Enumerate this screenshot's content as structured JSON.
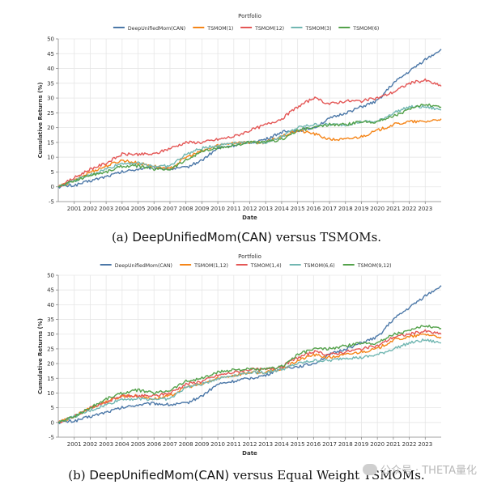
{
  "captions": {
    "a": {
      "prefix": "(a) ",
      "subject": "DeepUnifiedMom(CAN)",
      "rest": " versus TSMOMs."
    },
    "b": {
      "prefix": "(b) ",
      "subject": "DeepUnifiedMom(CAN)",
      "rest": " versus Equal Weight TSMOMs."
    }
  },
  "watermark": {
    "text": "公众号 · THETA量化",
    "icon": "wechat-icon"
  },
  "chart_data": [
    {
      "type": "line",
      "id": "a",
      "title": "",
      "legend_title": "Portfolio",
      "legend_position": "top-center",
      "xlabel": "Date",
      "ylabel": "Cumulative Returns (%)",
      "xlim": [
        2000.0,
        2024.0
      ],
      "ylim": [
        -5,
        50
      ],
      "yticks": [
        -5,
        0,
        5,
        10,
        15,
        20,
        25,
        30,
        35,
        40,
        45,
        50
      ],
      "xticks": [
        2001,
        2002,
        2003,
        2004,
        2005,
        2006,
        2007,
        2008,
        2009,
        2010,
        2011,
        2012,
        2013,
        2014,
        2015,
        2016,
        2017,
        2018,
        2019,
        2020,
        2021,
        2022,
        2023
      ],
      "grid": true,
      "series": [
        {
          "name": "DeepUnifiedMom(CAN)",
          "color": "#4c78a8",
          "x": [
            2000.0,
            2001.0,
            2002.0,
            2003.0,
            2004.0,
            2005.0,
            2006.0,
            2007.0,
            2008.0,
            2009.0,
            2010.0,
            2011.0,
            2012.0,
            2013.0,
            2014.0,
            2015.0,
            2016.0,
            2017.0,
            2018.0,
            2019.0,
            2020.0,
            2021.0,
            2022.0,
            2023.0,
            2024.0
          ],
          "y": [
            0,
            0.5,
            2,
            3.5,
            5,
            6,
            6.5,
            6,
            6.5,
            9,
            13,
            14,
            15,
            16,
            18.5,
            19,
            20,
            23,
            25,
            27,
            29,
            35,
            39,
            43,
            46.5
          ]
        },
        {
          "name": "TSMOM(1)",
          "color": "#f58518",
          "x": [
            2000.0,
            2001.0,
            2002.0,
            2003.0,
            2004.0,
            2005.0,
            2006.0,
            2007.0,
            2008.0,
            2009.0,
            2010.0,
            2011.0,
            2012.0,
            2013.0,
            2014.0,
            2015.0,
            2016.0,
            2017.0,
            2018.0,
            2019.0,
            2020.0,
            2021.0,
            2022.0,
            2023.0,
            2024.0
          ],
          "y": [
            0,
            2,
            5,
            7,
            9,
            8,
            7,
            6,
            10,
            12,
            14,
            15,
            15,
            15,
            17,
            19,
            18,
            16,
            16,
            17,
            19,
            21,
            22,
            22,
            23
          ]
        },
        {
          "name": "TSMOM(12)",
          "color": "#e45756",
          "x": [
            2000.0,
            2001.0,
            2002.0,
            2003.0,
            2004.0,
            2005.0,
            2006.0,
            2007.0,
            2008.0,
            2009.0,
            2010.0,
            2011.0,
            2012.0,
            2013.0,
            2014.0,
            2015.0,
            2016.0,
            2017.0,
            2018.0,
            2019.0,
            2020.0,
            2021.0,
            2022.0,
            2023.0,
            2024.0
          ],
          "y": [
            0,
            3,
            6,
            8,
            11,
            11,
            11,
            13,
            15,
            15,
            16,
            17,
            19,
            21,
            23,
            27,
            30,
            28,
            29,
            29,
            30,
            32,
            35,
            36,
            34
          ]
        },
        {
          "name": "TSMOM(3)",
          "color": "#72b7b2",
          "x": [
            2000.0,
            2001.0,
            2002.0,
            2003.0,
            2004.0,
            2005.0,
            2006.0,
            2007.0,
            2008.0,
            2009.0,
            2010.0,
            2011.0,
            2012.0,
            2013.0,
            2014.0,
            2015.0,
            2016.0,
            2017.0,
            2018.0,
            2019.0,
            2020.0,
            2021.0,
            2022.0,
            2023.0,
            2024.0
          ],
          "y": [
            0,
            2,
            4,
            6,
            8,
            8,
            7,
            7,
            11,
            13,
            14,
            15,
            15,
            15,
            17,
            20,
            21,
            21,
            21,
            22,
            22,
            25,
            27,
            27,
            26
          ]
        },
        {
          "name": "TSMOM(6)",
          "color": "#54a24b",
          "x": [
            2000.0,
            2001.0,
            2002.0,
            2003.0,
            2004.0,
            2005.0,
            2006.0,
            2007.0,
            2008.0,
            2009.0,
            2010.0,
            2011.0,
            2012.0,
            2013.0,
            2014.0,
            2015.0,
            2016.0,
            2017.0,
            2018.0,
            2019.0,
            2020.0,
            2021.0,
            2022.0,
            2023.0,
            2024.0
          ],
          "y": [
            0,
            2,
            4,
            5,
            7,
            7,
            6,
            6,
            9,
            12,
            13,
            14,
            15,
            15,
            16,
            19,
            20,
            21,
            21,
            22,
            22,
            24,
            26,
            28,
            27
          ]
        }
      ]
    },
    {
      "type": "line",
      "id": "b",
      "title": "",
      "legend_title": "Portfolio",
      "legend_position": "top-center",
      "xlabel": "Date",
      "ylabel": "Cumulative Returns (%)",
      "xlim": [
        2000.0,
        2024.0
      ],
      "ylim": [
        -5,
        50
      ],
      "yticks": [
        -5,
        0,
        5,
        10,
        15,
        20,
        25,
        30,
        35,
        40,
        45,
        50
      ],
      "xticks": [
        2001,
        2002,
        2003,
        2004,
        2005,
        2006,
        2007,
        2008,
        2009,
        2010,
        2011,
        2012,
        2013,
        2014,
        2015,
        2016,
        2017,
        2018,
        2019,
        2020,
        2021,
        2022,
        2023
      ],
      "grid": true,
      "series": [
        {
          "name": "DeepUnifiedMom(CAN)",
          "color": "#4c78a8",
          "x": [
            2000.0,
            2001.0,
            2002.0,
            2003.0,
            2004.0,
            2005.0,
            2006.0,
            2007.0,
            2008.0,
            2009.0,
            2010.0,
            2011.0,
            2012.0,
            2013.0,
            2014.0,
            2015.0,
            2016.0,
            2017.0,
            2018.0,
            2019.0,
            2020.0,
            2021.0,
            2022.0,
            2023.0,
            2024.0
          ],
          "y": [
            0,
            0.5,
            2,
            3.5,
            5,
            6,
            6.5,
            6,
            6.5,
            9,
            13,
            14,
            15,
            16,
            18.5,
            19,
            20,
            23,
            25,
            27,
            29,
            35,
            39,
            43,
            46.5
          ]
        },
        {
          "name": "TSMOM(1,12)",
          "color": "#f58518",
          "x": [
            2000.0,
            2001.0,
            2002.0,
            2003.0,
            2004.0,
            2005.0,
            2006.0,
            2007.0,
            2008.0,
            2009.0,
            2010.0,
            2011.0,
            2012.0,
            2013.0,
            2014.0,
            2015.0,
            2016.0,
            2017.0,
            2018.0,
            2019.0,
            2020.0,
            2021.0,
            2022.0,
            2023.0,
            2024.0
          ],
          "y": [
            0,
            2,
            5,
            7,
            9,
            9,
            8,
            9,
            12,
            13,
            15,
            16,
            17,
            17,
            18,
            21,
            23,
            22,
            23,
            24,
            25,
            28,
            29,
            30,
            29
          ]
        },
        {
          "name": "TSMOM(1,4)",
          "color": "#e45756",
          "x": [
            2000.0,
            2001.0,
            2002.0,
            2003.0,
            2004.0,
            2005.0,
            2006.0,
            2007.0,
            2008.0,
            2009.0,
            2010.0,
            2011.0,
            2012.0,
            2013.0,
            2014.0,
            2015.0,
            2016.0,
            2017.0,
            2018.0,
            2019.0,
            2020.0,
            2021.0,
            2022.0,
            2023.0,
            2024.0
          ],
          "y": [
            0,
            2,
            5,
            7,
            9,
            9,
            9,
            10,
            13,
            14,
            16,
            17,
            18,
            18,
            19,
            22,
            24,
            23,
            24,
            25,
            26,
            29,
            30,
            31,
            30
          ]
        },
        {
          "name": "TSMOM(6,6)",
          "color": "#72b7b2",
          "x": [
            2000.0,
            2001.0,
            2002.0,
            2003.0,
            2004.0,
            2005.0,
            2006.0,
            2007.0,
            2008.0,
            2009.0,
            2010.0,
            2011.0,
            2012.0,
            2013.0,
            2014.0,
            2015.0,
            2016.0,
            2017.0,
            2018.0,
            2019.0,
            2020.0,
            2021.0,
            2022.0,
            2023.0,
            2024.0
          ],
          "y": [
            0,
            2,
            4,
            6,
            8,
            8,
            8,
            8,
            12,
            13,
            15,
            16,
            17,
            17,
            18,
            20,
            21,
            21,
            22,
            22,
            23,
            25,
            27,
            28,
            27
          ]
        },
        {
          "name": "TSMOM(9,12)",
          "color": "#54a24b",
          "x": [
            2000.0,
            2001.0,
            2002.0,
            2003.0,
            2004.0,
            2005.0,
            2006.0,
            2007.0,
            2008.0,
            2009.0,
            2010.0,
            2011.0,
            2012.0,
            2013.0,
            2014.0,
            2015.0,
            2016.0,
            2017.0,
            2018.0,
            2019.0,
            2020.0,
            2021.0,
            2022.0,
            2023.0,
            2024.0
          ],
          "y": [
            0,
            2,
            5,
            8,
            10,
            11,
            10,
            11,
            14,
            15,
            17,
            18,
            18,
            18,
            19,
            23,
            25,
            25,
            26,
            27,
            27,
            30,
            31,
            33,
            32
          ]
        }
      ]
    }
  ]
}
